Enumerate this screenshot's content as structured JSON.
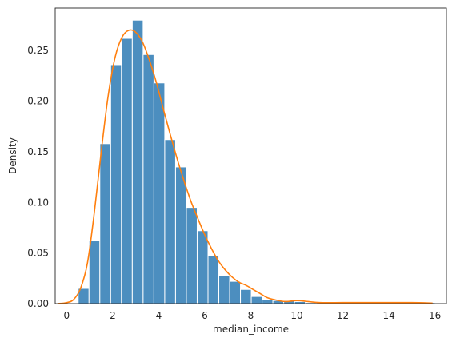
{
  "chart_data": {
    "type": "bar",
    "title": "",
    "xlabel": "median_income",
    "ylabel": "Density",
    "xlim": [
      -0.5,
      16.5
    ],
    "ylim": [
      0,
      0.292
    ],
    "xticks": [
      0,
      2,
      4,
      6,
      8,
      10,
      12,
      14,
      16
    ],
    "yticks": [
      0.0,
      0.05,
      0.1,
      0.15,
      0.2,
      0.25
    ],
    "ytick_labels": [
      "0.00",
      "0.05",
      "0.10",
      "0.15",
      "0.20",
      "0.25"
    ],
    "grid": false,
    "legend": "none",
    "histogram": {
      "bin_edges": [
        0.5,
        0.97,
        1.44,
        1.91,
        2.38,
        2.85,
        3.32,
        3.79,
        4.26,
        4.73,
        5.2,
        5.67,
        6.14,
        6.61,
        7.08,
        7.55,
        8.02,
        8.49,
        8.96,
        9.43,
        9.9,
        10.37,
        10.84,
        11.31,
        11.78,
        12.25,
        12.72,
        13.19,
        13.66,
        14.13,
        14.6,
        15.07,
        15.54,
        16.01
      ],
      "densities": [
        0.015,
        0.062,
        0.158,
        0.236,
        0.262,
        0.28,
        0.246,
        0.218,
        0.162,
        0.135,
        0.095,
        0.072,
        0.047,
        0.028,
        0.022,
        0.014,
        0.007,
        0.004,
        0.003,
        0.003,
        0.002,
        0.001,
        0.001,
        0.001,
        0.001,
        0.001,
        0.001,
        0.001,
        0.0005,
        0.0005,
        0.0005,
        0.0005,
        0.001
      ]
    },
    "kde": {
      "x": [
        -0.4,
        0.0,
        0.3,
        0.6,
        0.9,
        1.2,
        1.5,
        1.8,
        2.1,
        2.4,
        2.7,
        3.0,
        3.3,
        3.6,
        3.9,
        4.2,
        4.5,
        4.8,
        5.1,
        5.4,
        5.7,
        6.0,
        6.3,
        6.6,
        6.9,
        7.2,
        7.5,
        7.8,
        8.1,
        8.4,
        8.7,
        9.0,
        9.5,
        10.0,
        10.5,
        11.0,
        12.0,
        13.0,
        14.0,
        15.0,
        15.9
      ],
      "y": [
        0.0,
        0.001,
        0.004,
        0.015,
        0.04,
        0.09,
        0.15,
        0.205,
        0.243,
        0.263,
        0.27,
        0.268,
        0.258,
        0.24,
        0.218,
        0.192,
        0.167,
        0.143,
        0.121,
        0.101,
        0.084,
        0.068,
        0.054,
        0.042,
        0.033,
        0.026,
        0.021,
        0.018,
        0.014,
        0.01,
        0.006,
        0.004,
        0.002,
        0.003,
        0.002,
        0.001,
        0.001,
        0.001,
        0.001,
        0.001,
        0.0005
      ]
    },
    "colors": {
      "bars": "#4c8ebf",
      "bar_edge": "#ffffff",
      "kde": "#ff7f0e",
      "axes": "#262626"
    }
  }
}
